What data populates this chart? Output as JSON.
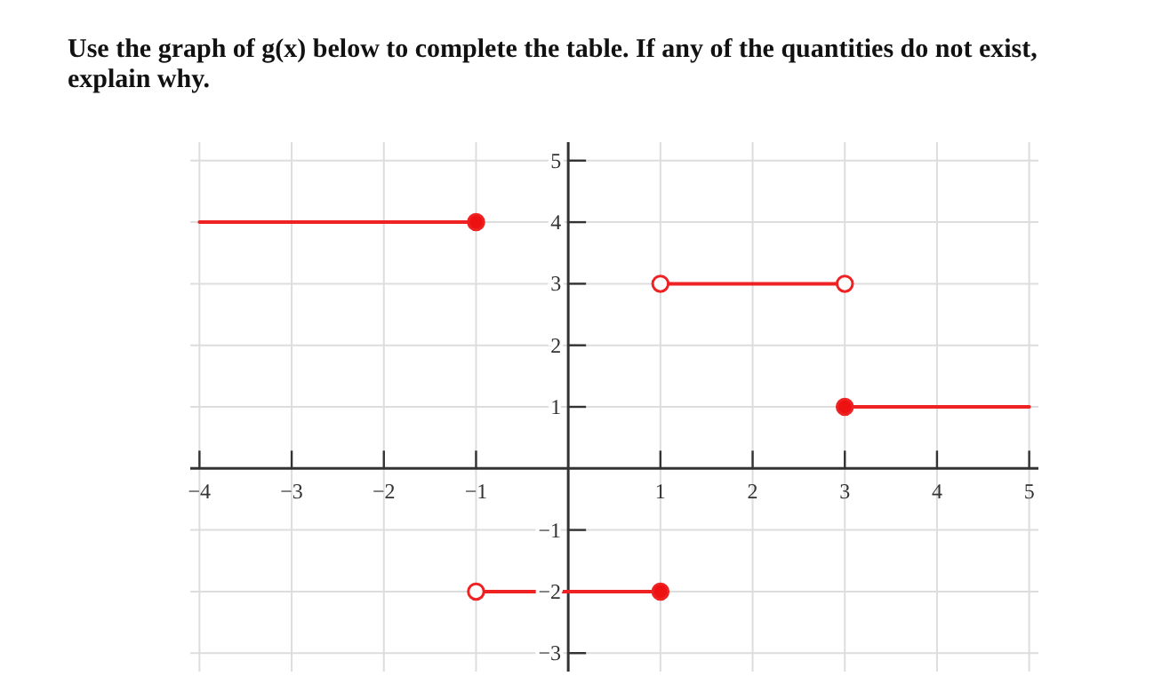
{
  "chart_data": {
    "type": "line",
    "title": "Use the graph of g(x) below to complete the table.  If any of the quantities do not exist, explain why.",
    "xlim": [
      -4.1,
      5.1
    ],
    "ylim": [
      -3.3,
      5.3
    ],
    "xticks": [
      -4,
      -3,
      -2,
      -1,
      1,
      2,
      3,
      4,
      5
    ],
    "yticks": [
      -3,
      -2,
      -1,
      1,
      2,
      3,
      4,
      5
    ],
    "grid": true,
    "marker": "none",
    "line_style": "solid",
    "series": [
      {
        "color": "#ee2222",
        "x": [
          -4,
          -1
        ],
        "values": [
          4,
          4
        ]
      },
      {
        "color": "#ee2222",
        "x": [
          -1,
          1
        ],
        "values": [
          -2,
          -2
        ]
      },
      {
        "color": "#ee2222",
        "x": [
          1,
          3
        ],
        "values": [
          3,
          3
        ]
      },
      {
        "color": "#ee2222",
        "x": [
          3,
          5
        ],
        "values": [
          1,
          1
        ]
      },
      {
        "type": "scatter",
        "marker": "circle",
        "color": "#ee1111",
        "x": [
          -1,
          1,
          3
        ],
        "values": [
          4,
          -2,
          1
        ]
      },
      {
        "type": "scatter",
        "marker": "circle",
        "color": "#ffffff",
        "x": [
          -1,
          1,
          3
        ],
        "values": [
          -2,
          3,
          3
        ]
      }
    ]
  }
}
